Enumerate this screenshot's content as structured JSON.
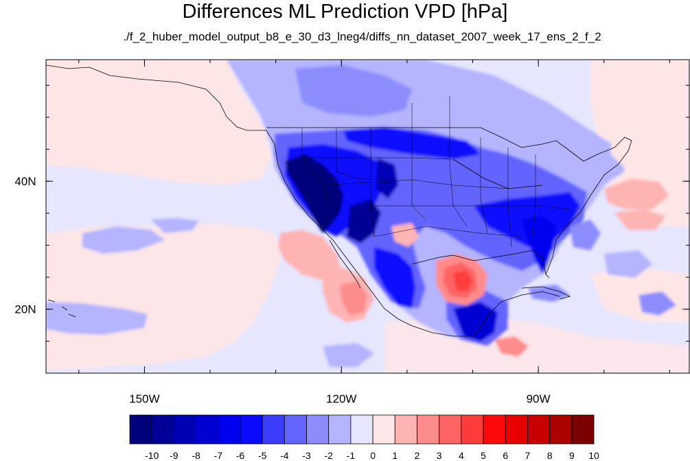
{
  "title": "Differences ML Prediction VPD [hPa]",
  "subtitle": "./f_2_huber_model_output_b8_e_30_d3_lneg4/diffs_nn_dataset_2007_week_17_ens_2_f_2",
  "axes": {
    "lon_range": [
      -165,
      -67
    ],
    "lat_range": [
      10,
      59
    ],
    "lon_ticks": [
      {
        "value": -150,
        "label": "150W"
      },
      {
        "value": -120,
        "label": "120W"
      },
      {
        "value": -90,
        "label": "90W"
      }
    ],
    "lat_ticks": [
      {
        "value": 40,
        "label": "40N"
      },
      {
        "value": 20,
        "label": "20N"
      }
    ]
  },
  "colorbar": {
    "labels": [
      "-10",
      "-9",
      "-8",
      "-7",
      "-6",
      "-5",
      "-4",
      "-3",
      "-2",
      "-1",
      "0",
      "1",
      "2",
      "3",
      "4",
      "5",
      "6",
      "7",
      "8",
      "9",
      "10"
    ],
    "colors": [
      "#00007a",
      "#000096",
      "#0000b4",
      "#0000d2",
      "#0000f0",
      "#0a0aff",
      "#3c3cff",
      "#6464ff",
      "#8c8cff",
      "#b4b4ff",
      "#e6e6ff",
      "#ffe6e6",
      "#ffb4b4",
      "#ff8c8c",
      "#ff6464",
      "#ff3c3c",
      "#ff0a0a",
      "#e60000",
      "#c80000",
      "#aa0000",
      "#7a0000"
    ]
  },
  "background_color": "#e6e6ff"
}
